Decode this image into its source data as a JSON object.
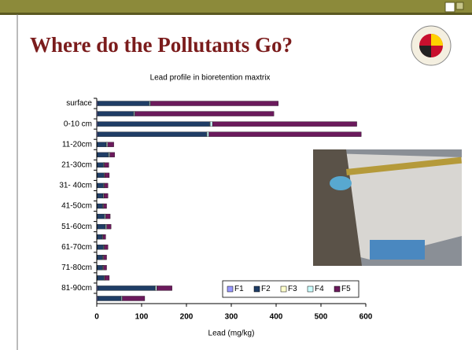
{
  "slide": {
    "title": "Where do the Pollutants Go?"
  },
  "chart_data": {
    "type": "bar",
    "orientation": "horizontal",
    "stacked": true,
    "title": "Lead profile in bioretention maxtrix",
    "xlabel": "Lead (mg/kg)",
    "categories": [
      "surface",
      null,
      "0-10 cm",
      null,
      "11-20cm",
      null,
      "21-30cm",
      null,
      "31- 40cm",
      null,
      "41-50cm",
      null,
      "51-60cm",
      null,
      "61-70cm",
      null,
      "71-80cm",
      null,
      "81-90cm",
      null
    ],
    "series": [
      {
        "name": "F1",
        "color": "#9999ff",
        "values": [
          2,
          2,
          2,
          2,
          1,
          1,
          1,
          1,
          1,
          1,
          1,
          1,
          1,
          1,
          1,
          1,
          1,
          1,
          2,
          2
        ]
      },
      {
        "name": "F2",
        "color": "#1f3d66",
        "values": [
          115,
          80,
          250,
          243,
          20,
          25,
          14,
          15,
          14,
          13,
          12,
          16,
          18,
          11,
          14,
          12,
          12,
          15,
          128,
          52
        ]
      },
      {
        "name": "F3",
        "color": "#ffffcc",
        "values": [
          1,
          1,
          1,
          1,
          1,
          1,
          1,
          1,
          1,
          1,
          1,
          1,
          1,
          1,
          1,
          1,
          1,
          1,
          1,
          1
        ]
      },
      {
        "name": "F4",
        "color": "#ccffff",
        "values": [
          2,
          2,
          5,
          4,
          2,
          2,
          1,
          1,
          1,
          1,
          1,
          2,
          2,
          1,
          1,
          1,
          1,
          1,
          3,
          2
        ]
      },
      {
        "name": "F5",
        "color": "#6b1a5c",
        "values": [
          285,
          310,
          322,
          340,
          14,
          11,
          10,
          10,
          8,
          9,
          7,
          10,
          10,
          6,
          8,
          7,
          7,
          10,
          34,
          50
        ]
      }
    ],
    "xlim": [
      0,
      600
    ],
    "xticks": [
      0,
      100,
      200,
      300,
      400,
      500,
      600
    ],
    "legend": "lower right"
  }
}
